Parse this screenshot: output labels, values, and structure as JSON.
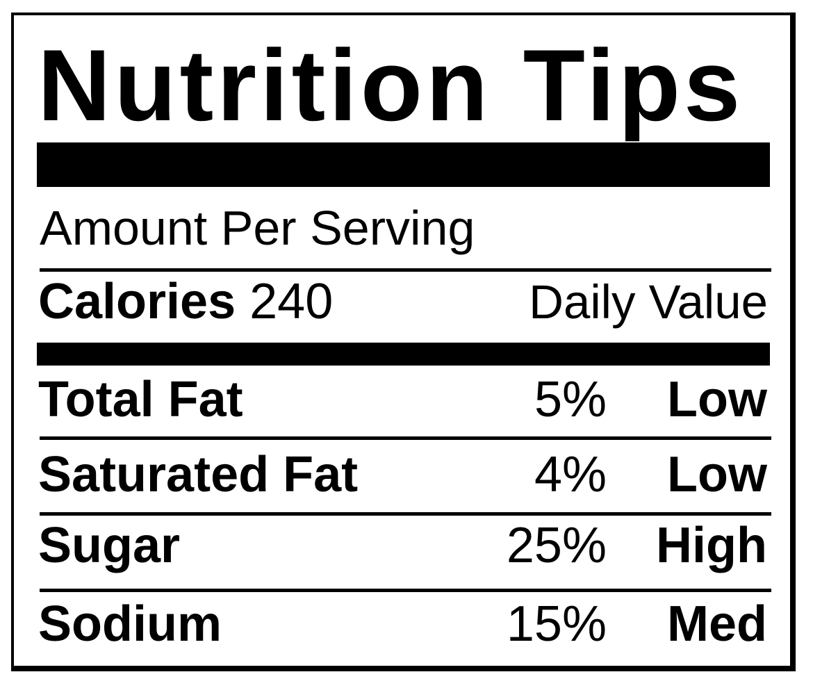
{
  "page": {
    "background": "#ffffff",
    "ink": "#000000"
  },
  "label": {
    "title": "Nutrition Tips",
    "amount_per_serving": "Amount Per Serving",
    "calories_label": "Calories",
    "calories_value": "240",
    "daily_value_header": "Daily Value",
    "rows": [
      {
        "name": "Total Fat",
        "percent": "5%",
        "level": "Low"
      },
      {
        "name": "Saturated Fat",
        "percent": "4%",
        "level": "Low"
      },
      {
        "name": "Sugar",
        "percent": "25%",
        "level": "High"
      },
      {
        "name": "Sodium",
        "percent": "15%",
        "level": "Med"
      }
    ]
  }
}
